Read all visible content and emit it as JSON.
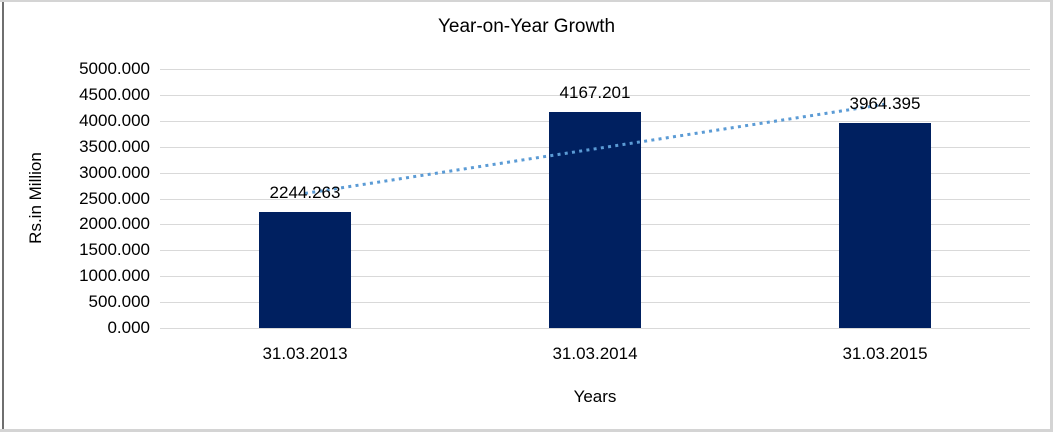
{
  "frame": {
    "border_color": "#D4D4D4",
    "left_line_color": "#6F6F6F",
    "background": "#FFFFFF"
  },
  "chart_data": {
    "type": "bar",
    "title": "Year-on-Year Growth",
    "categories": [
      "31.03.2013",
      "31.03.2014",
      "31.03.2015"
    ],
    "values": [
      2244.263,
      4167.201,
      3964.395
    ],
    "data_labels": [
      "2244.263",
      "4167.201",
      "3964.395"
    ],
    "xlabel": "Years",
    "ylabel": "Rs.in Million",
    "ylim": [
      0,
      5000
    ],
    "ytick_step": 500,
    "ytick_labels": [
      "5000.000",
      "4500.000",
      "4000.000",
      "3500.000",
      "3000.000",
      "2500.000",
      "2000.000",
      "1500.000",
      "1000.000",
      "500.000",
      "0.000"
    ],
    "grid": true,
    "gridline_color": "#D9D9D9",
    "bar_color": "#002060",
    "label_color": "#000000",
    "trendline": {
      "type": "linear",
      "style": "dotted",
      "color": "#5B9BD5"
    },
    "legend": "none"
  }
}
